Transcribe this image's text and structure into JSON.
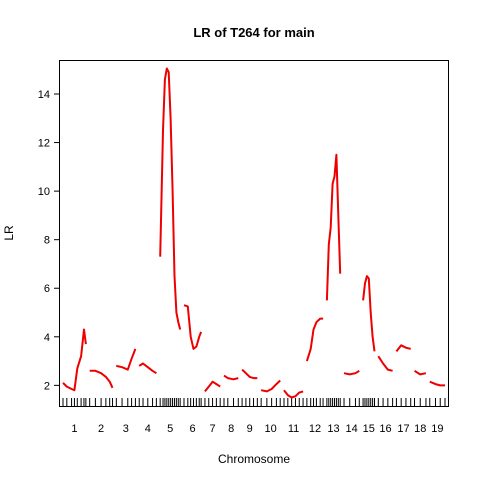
{
  "chart_data": {
    "type": "line",
    "title": "LR of T264 for main",
    "xlabel": "Chromosome",
    "ylabel": "LR",
    "ylim": [
      1.15,
      15.4
    ],
    "yticks": [
      2,
      4,
      6,
      8,
      10,
      12,
      14
    ],
    "series_color": "#ee0000",
    "grid": false,
    "legend": "none",
    "chromosomes": [
      {
        "label": "1",
        "x": [
          0.0,
          0.2,
          0.45,
          0.6,
          0.75,
          0.95,
          1.1,
          1.2
        ],
        "lr": [
          2.1,
          1.95,
          1.85,
          1.8,
          2.7,
          3.2,
          4.3,
          3.7
        ]
      },
      {
        "label": "2",
        "x": [
          0.0,
          0.3,
          0.6,
          0.85,
          1.05,
          1.2
        ],
        "lr": [
          2.6,
          2.6,
          2.5,
          2.35,
          2.15,
          1.9
        ]
      },
      {
        "label": "3",
        "x": [
          0.0,
          0.3,
          0.6,
          0.8,
          1.0
        ],
        "lr": [
          2.8,
          2.75,
          2.65,
          3.1,
          3.5
        ]
      },
      {
        "label": "4",
        "x": [
          0.0,
          0.2,
          0.45,
          0.7,
          0.9
        ],
        "lr": [
          2.8,
          2.9,
          2.75,
          2.6,
          2.5
        ]
      },
      {
        "label": "5",
        "x": [
          0.0,
          0.15,
          0.25,
          0.35,
          0.45,
          0.55,
          0.65,
          0.75,
          0.85,
          0.95,
          1.05
        ],
        "lr": [
          7.3,
          12.5,
          14.6,
          15.05,
          14.9,
          13.0,
          10.0,
          6.5,
          5.0,
          4.6,
          4.3
        ]
      },
      {
        "label": "6",
        "x": [
          0.0,
          0.2,
          0.35,
          0.5,
          0.65,
          0.8,
          0.9
        ],
        "lr": [
          5.3,
          5.25,
          4.0,
          3.5,
          3.6,
          4.0,
          4.2
        ]
      },
      {
        "label": "7",
        "x": [
          0.0,
          0.2,
          0.4,
          0.6,
          0.8
        ],
        "lr": [
          1.75,
          1.95,
          2.15,
          2.05,
          1.95
        ]
      },
      {
        "label": "8",
        "x": [
          0.0,
          0.2,
          0.5,
          0.75
        ],
        "lr": [
          2.4,
          2.3,
          2.25,
          2.3
        ]
      },
      {
        "label": "9",
        "x": [
          0.0,
          0.2,
          0.4,
          0.6,
          0.8
        ],
        "lr": [
          2.65,
          2.5,
          2.35,
          2.3,
          2.3
        ]
      },
      {
        "label": "10",
        "x": [
          0.0,
          0.3,
          0.55,
          0.8,
          1.0
        ],
        "lr": [
          1.8,
          1.75,
          1.85,
          2.05,
          2.2
        ]
      },
      {
        "label": "11",
        "x": [
          0.0,
          0.2,
          0.4,
          0.6,
          0.8,
          1.0
        ],
        "lr": [
          1.8,
          1.6,
          1.5,
          1.55,
          1.7,
          1.75
        ]
      },
      {
        "label": "12",
        "x": [
          0.0,
          0.2,
          0.35,
          0.5,
          0.7,
          0.85
        ],
        "lr": [
          3.0,
          3.5,
          4.3,
          4.6,
          4.75,
          4.75
        ]
      },
      {
        "label": "13",
        "x": [
          0.0,
          0.1,
          0.2,
          0.3,
          0.4,
          0.5,
          0.6,
          0.7
        ],
        "lr": [
          5.5,
          7.8,
          8.5,
          10.3,
          10.6,
          11.5,
          9.0,
          6.6
        ]
      },
      {
        "label": "14",
        "x": [
          0.0,
          0.3,
          0.6,
          0.8
        ],
        "lr": [
          2.5,
          2.45,
          2.5,
          2.6
        ]
      },
      {
        "label": "15",
        "x": [
          0.0,
          0.1,
          0.2,
          0.3,
          0.4,
          0.5,
          0.6
        ],
        "lr": [
          5.5,
          6.2,
          6.5,
          6.4,
          5.0,
          4.0,
          3.4
        ]
      },
      {
        "label": "16",
        "x": [
          0.0,
          0.25,
          0.5,
          0.75
        ],
        "lr": [
          3.2,
          2.9,
          2.65,
          2.6
        ]
      },
      {
        "label": "17",
        "x": [
          0.0,
          0.25,
          0.5,
          0.75
        ],
        "lr": [
          3.4,
          3.65,
          3.55,
          3.5
        ]
      },
      {
        "label": "18",
        "x": [
          0.0,
          0.3,
          0.6
        ],
        "lr": [
          2.6,
          2.45,
          2.5
        ]
      },
      {
        "label": "19",
        "x": [
          0.0,
          0.3,
          0.55,
          0.8
        ],
        "lr": [
          2.15,
          2.05,
          2.0,
          2.0
        ]
      }
    ]
  }
}
